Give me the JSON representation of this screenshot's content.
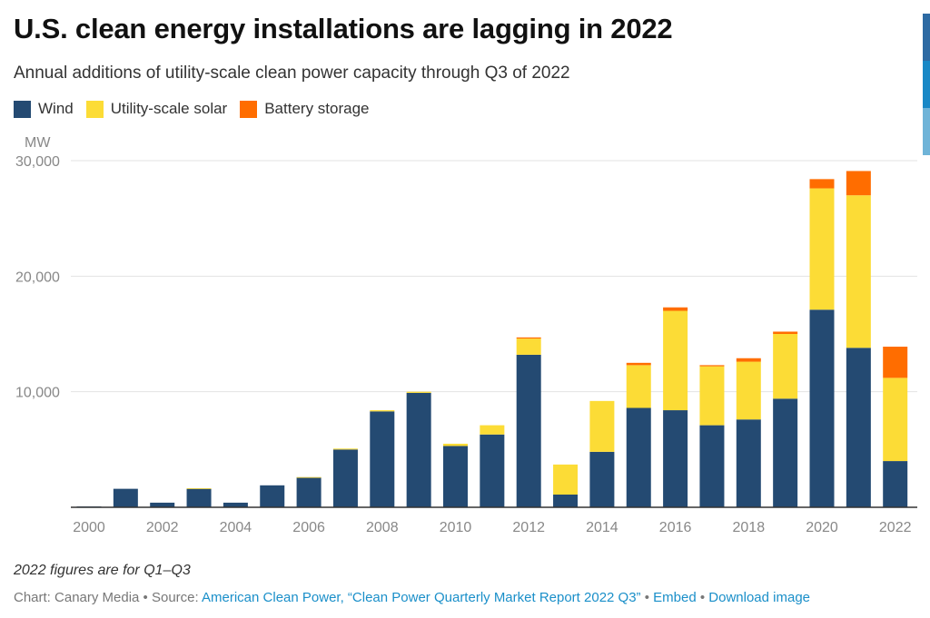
{
  "header": {
    "title": "U.S. clean energy installations are lagging in 2022",
    "subtitle": "Annual additions of utility-scale clean power capacity through Q3 of 2022"
  },
  "legend": [
    {
      "label": "Wind",
      "color": "#244a72"
    },
    {
      "label": "Utility-scale solar",
      "color": "#fcdc36"
    },
    {
      "label": "Battery storage",
      "color": "#ff6d00"
    }
  ],
  "chart_data": {
    "type": "bar",
    "stacked": true,
    "ylabel": "MW",
    "ylim": [
      0,
      30000
    ],
    "yticks": [
      10000,
      20000,
      30000
    ],
    "ytick_labels": [
      "10,000",
      "20,000",
      "30,000"
    ],
    "grid": true,
    "legend_position": "top-left",
    "categories": [
      "2000",
      "2001",
      "2002",
      "2003",
      "2004",
      "2005",
      "2006",
      "2007",
      "2008",
      "2009",
      "2010",
      "2011",
      "2012",
      "2013",
      "2014",
      "2015",
      "2016",
      "2017",
      "2018",
      "2019",
      "2020",
      "2021",
      "2022"
    ],
    "xtick_labels": [
      "2000",
      "2002",
      "2004",
      "2006",
      "2008",
      "2010",
      "2012",
      "2014",
      "2016",
      "2018",
      "2020",
      "2022"
    ],
    "series": [
      {
        "name": "Wind",
        "color": "#244a72",
        "values": [
          70,
          1600,
          400,
          1600,
          400,
          1900,
          2600,
          5000,
          8300,
          9900,
          5300,
          6300,
          13200,
          1100,
          4800,
          8600,
          8400,
          7100,
          7600,
          9400,
          17100,
          13800,
          4000
        ]
      },
      {
        "name": "Utility-scale solar",
        "color": "#fcdc36",
        "values": [
          0,
          0,
          0,
          50,
          0,
          0,
          10,
          80,
          100,
          100,
          200,
          800,
          1400,
          2600,
          4400,
          3700,
          8600,
          5100,
          5000,
          5600,
          10500,
          13200,
          7200
        ]
      },
      {
        "name": "Battery storage",
        "color": "#ff6d00",
        "values": [
          0,
          0,
          0,
          0,
          0,
          0,
          0,
          0,
          0,
          0,
          0,
          0,
          100,
          0,
          0,
          200,
          300,
          100,
          300,
          200,
          800,
          2100,
          2700
        ]
      }
    ]
  },
  "footer": {
    "note": "2022 figures are for Q1–Q3",
    "credit_prefix": "Chart: Canary Media • Source: ",
    "source_link": "American Clean Power, “Clean Power Quarterly Market Report 2022 Q3”",
    "sep1": " • ",
    "embed_link": "Embed",
    "sep2": " • ",
    "download_link": "Download image"
  },
  "side_strip_colors": [
    "#2d6aa3",
    "#1888c6",
    "#6fb4d8"
  ]
}
